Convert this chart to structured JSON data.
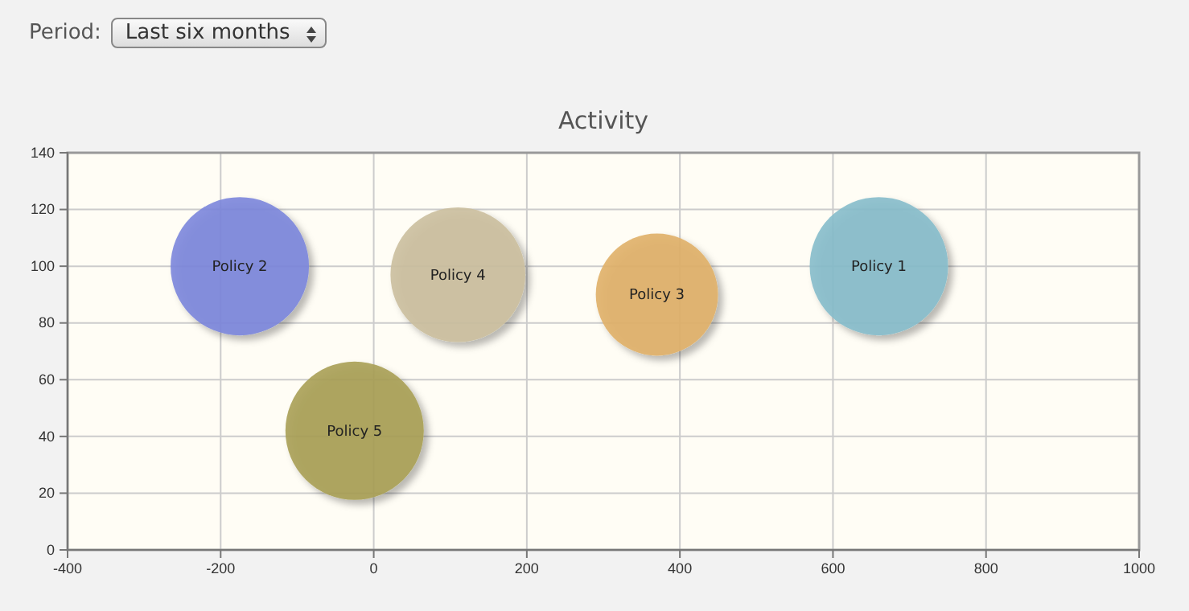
{
  "chart_data": {
    "type": "bubble",
    "title": "Activity",
    "annotations": [
      "Period:",
      "Last six months"
    ],
    "xlim": [
      -400,
      1000
    ],
    "xticks": [
      -400,
      -200,
      0,
      200,
      400,
      600,
      800,
      1000
    ],
    "ylim": [
      0,
      140
    ],
    "yticks": [
      0,
      20,
      40,
      60,
      80,
      100,
      120,
      140
    ],
    "grid": true,
    "series": [
      {
        "name": "Policy 1",
        "color": "#86bccb",
        "x": [
          660
        ],
        "values": [
          100
        ],
        "sizes": [
          1
        ]
      },
      {
        "name": "Policy 2",
        "color": "#7b86dc",
        "x": [
          -175
        ],
        "values": [
          100
        ],
        "sizes": [
          1
        ]
      },
      {
        "name": "Policy 3",
        "color": "#e0b068",
        "x": [
          370
        ],
        "values": [
          90
        ],
        "sizes": [
          0.78
        ]
      },
      {
        "name": "Policy 4",
        "color": "#cbbf9f",
        "x": [
          110
        ],
        "values": [
          97
        ],
        "sizes": [
          0.95
        ]
      },
      {
        "name": "Policy 5",
        "color": "#a8a055",
        "x": [
          -25
        ],
        "values": [
          42
        ],
        "sizes": [
          1
        ]
      }
    ]
  }
}
